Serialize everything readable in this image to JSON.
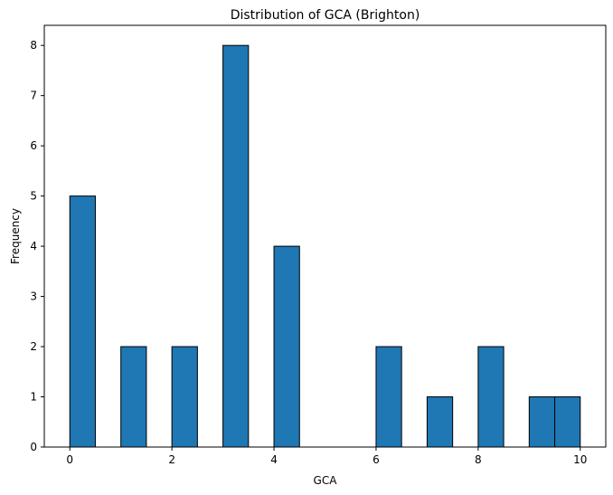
{
  "chart_data": {
    "type": "bar",
    "title": "Distribution of GCA (Brighton)",
    "xlabel": "GCA",
    "ylabel": "Frequency",
    "xlim": [
      -0.5,
      10.5
    ],
    "ylim": [
      0,
      8.4
    ],
    "xticks": [
      0,
      2,
      4,
      6,
      8,
      10
    ],
    "yticks": [
      0,
      1,
      2,
      3,
      4,
      5,
      6,
      7,
      8
    ],
    "bin_width": 0.5,
    "bins": [
      {
        "x0": 0.0,
        "x1": 0.5,
        "count": 5
      },
      {
        "x0": 1.0,
        "x1": 1.5,
        "count": 2
      },
      {
        "x0": 2.0,
        "x1": 2.5,
        "count": 2
      },
      {
        "x0": 3.0,
        "x1": 3.5,
        "count": 8
      },
      {
        "x0": 4.0,
        "x1": 4.5,
        "count": 4
      },
      {
        "x0": 6.0,
        "x1": 6.5,
        "count": 2
      },
      {
        "x0": 7.0,
        "x1": 7.5,
        "count": 1
      },
      {
        "x0": 8.0,
        "x1": 8.5,
        "count": 2
      },
      {
        "x0": 9.0,
        "x1": 9.5,
        "count": 1
      },
      {
        "x0": 9.5,
        "x1": 10.0,
        "count": 1
      }
    ],
    "grid": false,
    "bar_color": "#1f77b4",
    "edge_color": "#000000"
  }
}
